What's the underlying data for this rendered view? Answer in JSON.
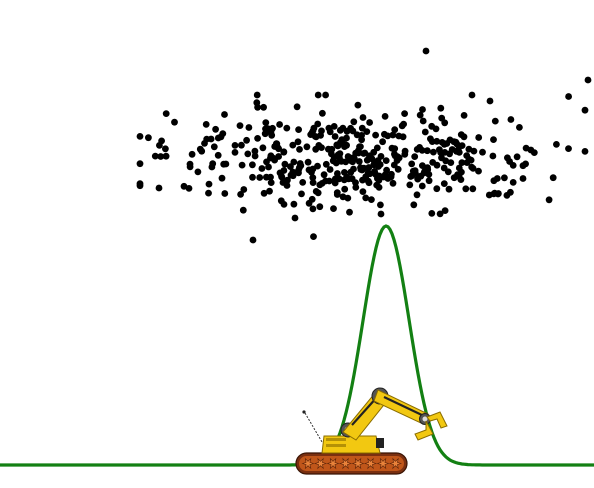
{
  "colors": {
    "background": "#ffffff",
    "dots": "#000000",
    "curve": "#138013",
    "robot_body": "#f2c811",
    "robot_track": "#c0561a"
  },
  "scene": {
    "curve": {
      "shape": "gaussian",
      "peak_at": 0.65,
      "peak_height": 0.54
    },
    "dot_cloud": {
      "count": 420
    },
    "robot": {
      "icon": "excavator-robot-icon"
    }
  }
}
